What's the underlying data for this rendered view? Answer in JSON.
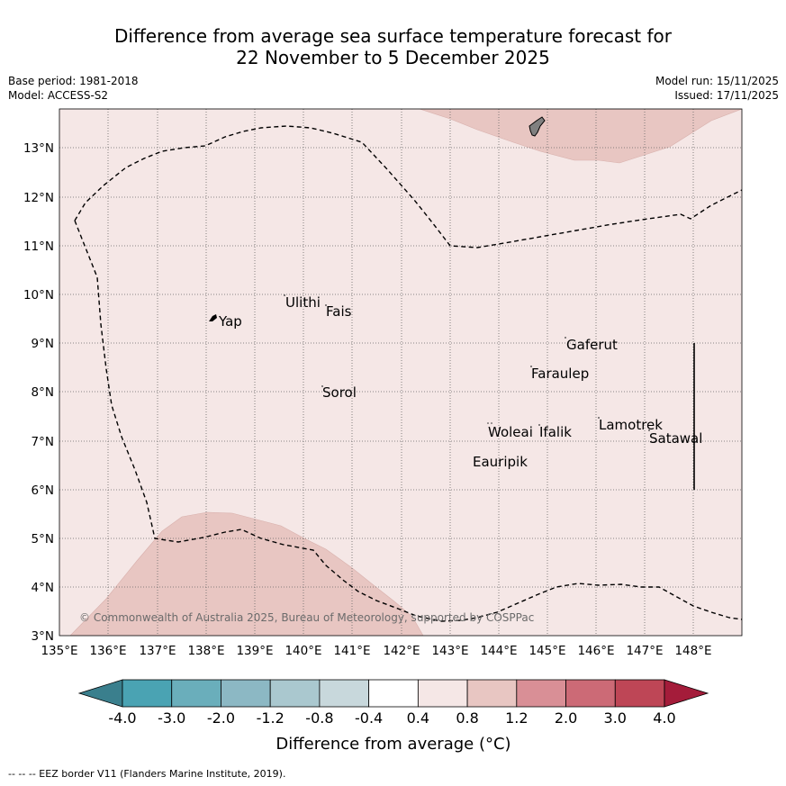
{
  "title": {
    "line1": "Difference from average sea surface temperature forecast for",
    "line2": "22 November to 5 December 2025"
  },
  "meta": {
    "base_period": "Base period: 1981-2018",
    "model": "Model: ACCESS-S2",
    "model_run": "Model run: 15/11/2025",
    "issued": "Issued: 17/11/2025"
  },
  "map": {
    "lon_range": [
      135,
      149
    ],
    "lat_range": [
      3,
      13.8
    ],
    "lon_ticks": [
      "135°E",
      "136°E",
      "137°E",
      "138°E",
      "139°E",
      "140°E",
      "141°E",
      "142°E",
      "143°E",
      "144°E",
      "145°E",
      "146°E",
      "147°E",
      "148°E"
    ],
    "lat_ticks": [
      "3°N",
      "4°N",
      "5°N",
      "6°N",
      "7°N",
      "8°N",
      "9°N",
      "10°N",
      "11°N",
      "12°N",
      "13°N"
    ],
    "background_category": "0.4 to 0.8",
    "anomaly_regions": [
      {
        "category": "0.8 to 1.2",
        "area": "north-east"
      },
      {
        "category": "0.8 to 1.2",
        "area": "south-west"
      }
    ],
    "places": [
      {
        "name": "Yap",
        "lon": 138.25,
        "lat": 9.5
      },
      {
        "name": "Ulithi",
        "lon": 139.65,
        "lat": 9.85
      },
      {
        "name": "Fais",
        "lon": 140.45,
        "lat": 9.65
      },
      {
        "name": "Gaferut",
        "lon": 145.3,
        "lat": 8.95
      },
      {
        "name": "Faraulep",
        "lon": 144.6,
        "lat": 8.35
      },
      {
        "name": "Sorol",
        "lon": 140.3,
        "lat": 7.95
      },
      {
        "name": "Lamotrek",
        "lon": 146.05,
        "lat": 7.3
      },
      {
        "name": "Woleai",
        "lon": 143.75,
        "lat": 7.1
      },
      {
        "name": "Ifalik",
        "lon": 144.45,
        "lat": 7.1
      },
      {
        "name": "Satawal",
        "lon": 147.05,
        "lat": 7.0
      },
      {
        "name": "Eauripik",
        "lon": 143.4,
        "lat": 6.5
      }
    ],
    "copyright": "© Commonwealth of Australia 2025, Bureau of Meteorology, supported by COSPPac"
  },
  "legend": {
    "ticks": [
      "-4.0",
      "-3.0",
      "-2.0",
      "-1.2",
      "-0.8",
      "-0.4",
      "0.4",
      "0.8",
      "1.2",
      "2.0",
      "3.0",
      "4.0"
    ],
    "colors": [
      "#3a7f8d",
      "#4aa3b3",
      "#6aaebb",
      "#8cb8c4",
      "#aac8cf",
      "#c8d8dc",
      "#ffffff",
      "#f5e7e6",
      "#e8c6c2",
      "#d98f96",
      "#cc6a76",
      "#be4656",
      "#a41c3a"
    ],
    "label": "Difference from average (°C)"
  },
  "footnote": "--  --  -- EEZ border V11 (Flanders Marine Institute, 2019)."
}
